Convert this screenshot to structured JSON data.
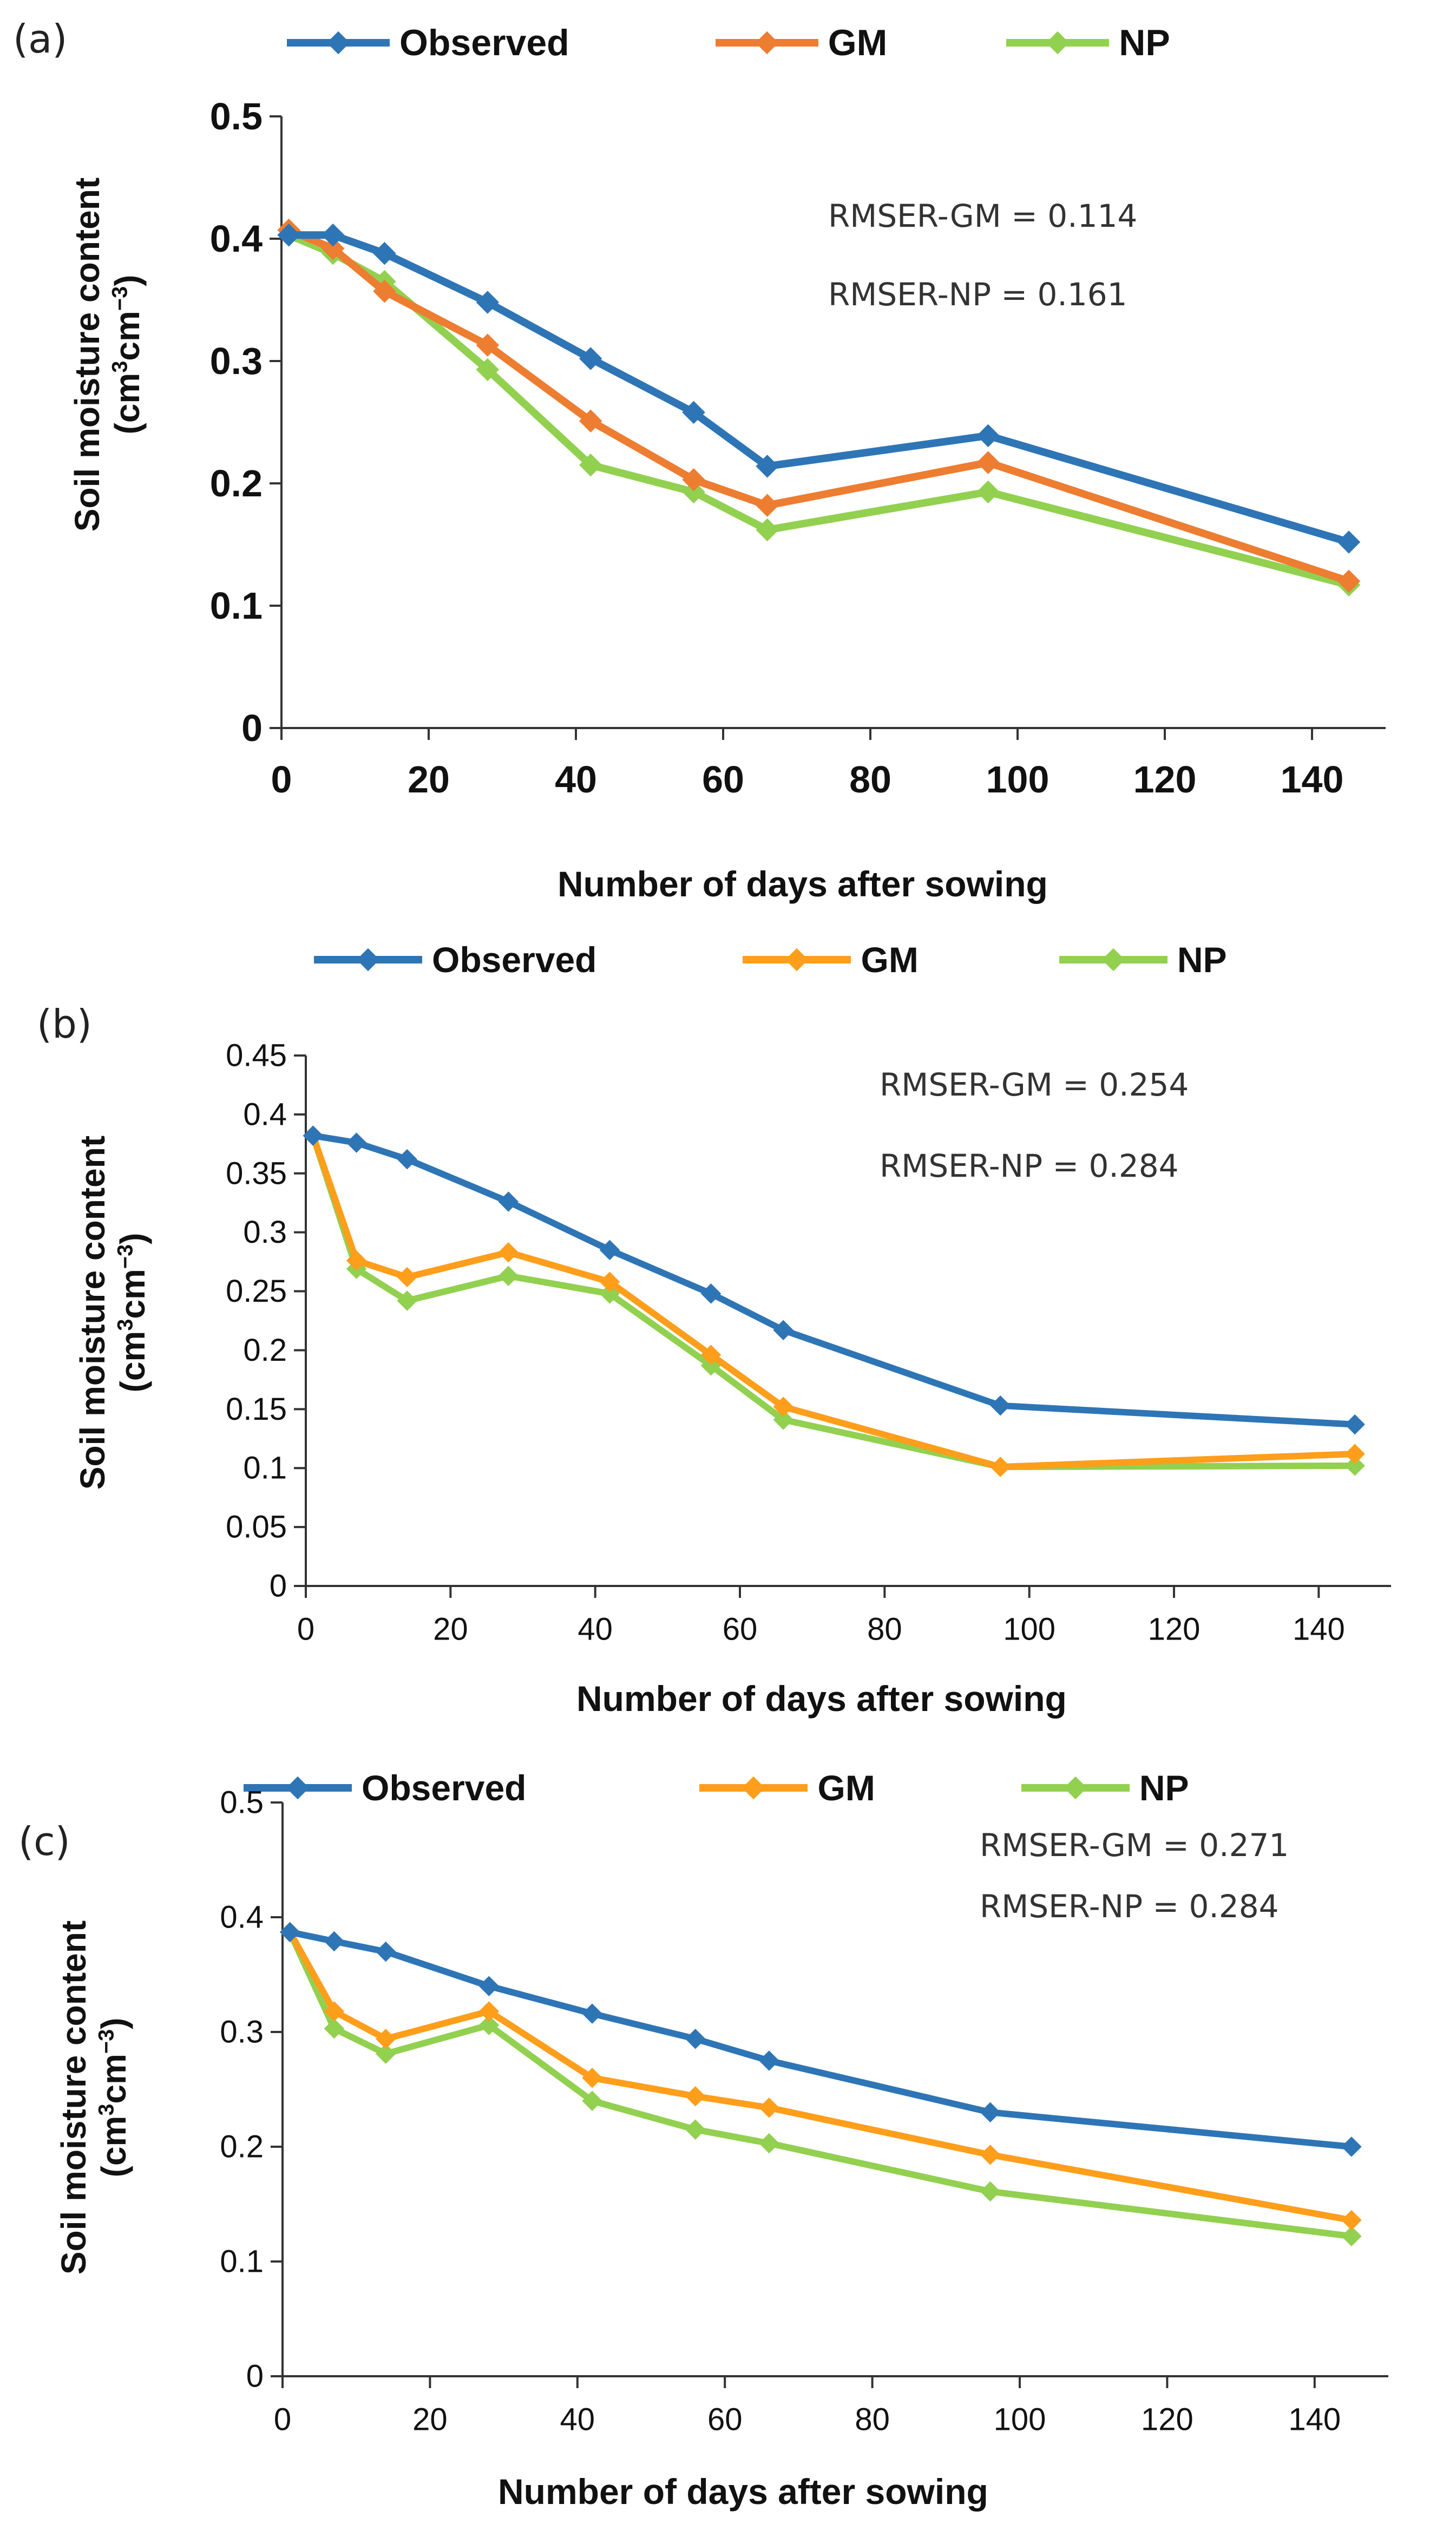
{
  "chart_data": [
    {
      "type": "line",
      "panel_label": "(a)",
      "ylabel": "Soil moisture content",
      "yunit": "(cm³cm⁻³)",
      "xlabel": "Number of days after sowing",
      "xlim": [
        0,
        150
      ],
      "ylim": [
        0,
        0.5
      ],
      "xticks": [
        "0",
        "20",
        "40",
        "60",
        "80",
        "100",
        "120",
        "140"
      ],
      "yticks": [
        "0",
        "0.1",
        "0.2",
        "0.3",
        "0.4",
        "0.5"
      ],
      "x": [
        1,
        7,
        14,
        28,
        42,
        56,
        66,
        96,
        145
      ],
      "series": [
        {
          "name": "Observed",
          "color": "#2E75B6",
          "values": [
            0.403,
            0.403,
            0.388,
            0.348,
            0.302,
            0.258,
            0.214,
            0.239,
            0.152
          ]
        },
        {
          "name": "GM",
          "color": "#ED7D31",
          "values": [
            0.407,
            0.392,
            0.357,
            0.313,
            0.251,
            0.203,
            0.182,
            0.217,
            0.12
          ]
        },
        {
          "name": "NP",
          "color": "#92D050",
          "values": [
            0.403,
            0.388,
            0.365,
            0.293,
            0.215,
            0.193,
            0.162,
            0.193,
            0.117
          ]
        }
      ],
      "annotations": [
        "RMSER-GM = 0.114",
        "RMSER-NP = 0.161"
      ]
    },
    {
      "type": "line",
      "panel_label": "(b)",
      "ylabel": "Soil moisture content",
      "yunit": "(cm³cm⁻³)",
      "xlabel": "Number of days after sowing",
      "xlim": [
        0,
        150
      ],
      "ylim": [
        0,
        0.45
      ],
      "xticks": [
        "0",
        "20",
        "40",
        "60",
        "80",
        "100",
        "120",
        "140"
      ],
      "yticks": [
        "0",
        "0.05",
        "0.1",
        "0.15",
        "0.2",
        "0.25",
        "0.3",
        "0.35",
        "0.4",
        "0.45"
      ],
      "x": [
        1,
        7,
        14,
        28,
        42,
        56,
        66,
        96,
        145
      ],
      "series": [
        {
          "name": "Observed",
          "color": "#2E75B6",
          "values": [
            0.382,
            0.376,
            0.362,
            0.326,
            0.285,
            0.248,
            0.217,
            0.153,
            0.137
          ]
        },
        {
          "name": "GM",
          "color": "#FF9E1B",
          "values": [
            0.382,
            0.276,
            0.262,
            0.283,
            0.258,
            0.196,
            0.152,
            0.101,
            0.112
          ]
        },
        {
          "name": "NP",
          "color": "#92D050",
          "values": [
            0.382,
            0.269,
            0.242,
            0.263,
            0.248,
            0.187,
            0.141,
            0.101,
            0.102
          ]
        }
      ],
      "annotations": [
        "RMSER-GM = 0.254",
        "RMSER-NP = 0.284"
      ]
    },
    {
      "type": "line",
      "panel_label": "(c)",
      "ylabel": "Soil moisture content",
      "yunit": "(cm³cm⁻³)",
      "xlabel": "Number of days after sowing",
      "xlim": [
        0,
        150
      ],
      "ylim": [
        0,
        0.5
      ],
      "xticks": [
        "0",
        "20",
        "40",
        "60",
        "80",
        "100",
        "120",
        "140"
      ],
      "yticks": [
        "0",
        "0.1",
        "0.2",
        "0.3",
        "0.4",
        "0.5"
      ],
      "x": [
        1,
        7,
        14,
        28,
        42,
        56,
        66,
        96,
        145
      ],
      "series": [
        {
          "name": "Observed",
          "color": "#2E75B6",
          "values": [
            0.387,
            0.379,
            0.37,
            0.34,
            0.316,
            0.294,
            0.275,
            0.23,
            0.2
          ]
        },
        {
          "name": "GM",
          "color": "#FF9E1B",
          "values": [
            0.387,
            0.318,
            0.294,
            0.318,
            0.26,
            0.244,
            0.234,
            0.193,
            0.136
          ]
        },
        {
          "name": "NP",
          "color": "#92D050",
          "values": [
            0.387,
            0.303,
            0.281,
            0.306,
            0.24,
            0.215,
            0.203,
            0.161,
            0.122
          ]
        }
      ],
      "annotations": [
        "RMSER-GM = 0.271",
        "RMSER-NP = 0.284"
      ]
    }
  ]
}
